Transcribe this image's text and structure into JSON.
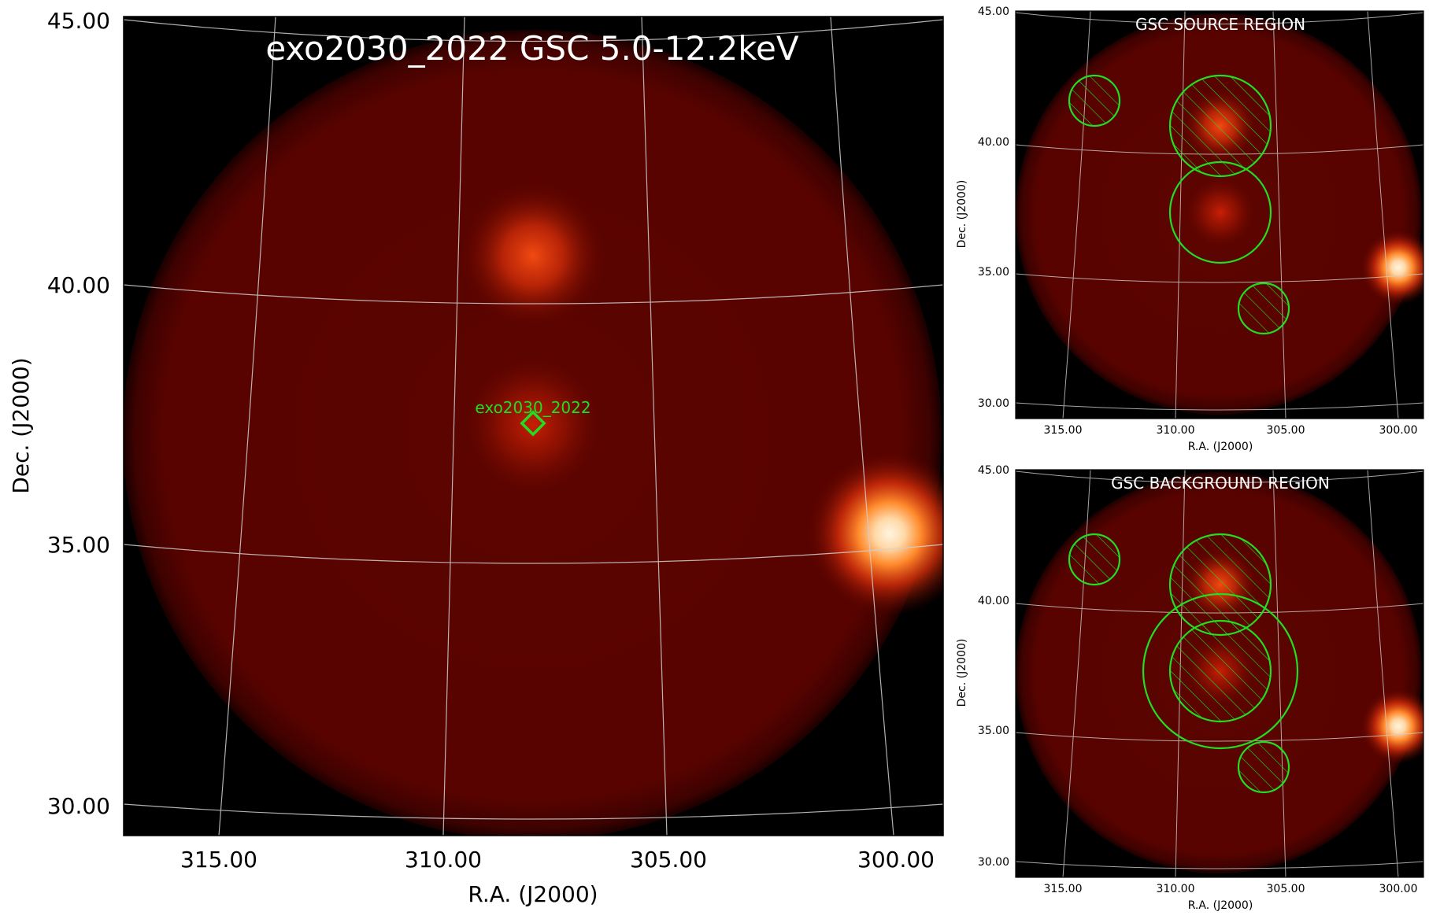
{
  "main_panel": {
    "title": "exo2030_2022 GSC 5.0-12.2keV",
    "xlabel": "R.A. (J2000)",
    "ylabel": "Dec. (J2000)",
    "x_ticks": [
      "315.00",
      "310.00",
      "305.00",
      "300.00"
    ],
    "y_ticks": [
      "45.00",
      "40.00",
      "35.00",
      "30.00"
    ],
    "source_label": "exo2030_2022"
  },
  "source_panel": {
    "title": "GSC SOURCE REGION",
    "xlabel": "R.A. (J2000)",
    "ylabel": "Dec. (J2000)",
    "x_ticks": [
      "315.00",
      "310.00",
      "305.00",
      "300.00"
    ],
    "y_ticks": [
      "45.00",
      "40.00",
      "35.00",
      "30.00"
    ]
  },
  "background_panel": {
    "title": "GSC BACKGROUND REGION",
    "xlabel": "R.A. (J2000)",
    "ylabel": "Dec. (J2000)",
    "x_ticks": [
      "315.00",
      "310.00",
      "305.00",
      "300.00"
    ],
    "y_ticks": [
      "45.00",
      "40.00",
      "35.00",
      "30.00"
    ]
  },
  "colors": {
    "background": "#000000",
    "field_of_view": "#5a0300",
    "region_green": "#22dd22",
    "grid": "#cccccc",
    "title_text": "#ffffff"
  },
  "icons": [
    "region-circle",
    "hatched-region-circle",
    "source-diamond-marker"
  ]
}
